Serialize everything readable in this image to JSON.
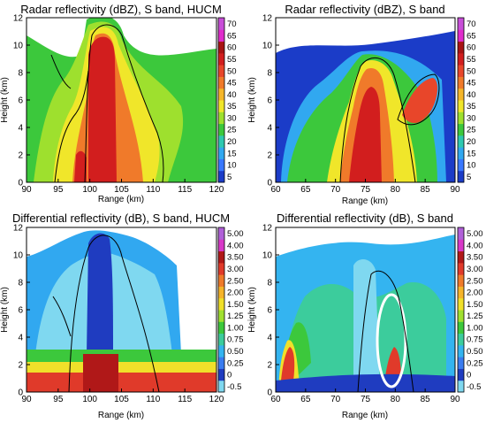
{
  "chart_data": [
    {
      "type": "heatmap",
      "title": "Radar reflectivity (dBZ), S band, HUCM",
      "xlabel": "Range (km)",
      "ylabel": "Height (km)",
      "xlim": [
        90,
        120
      ],
      "ylim": [
        0,
        12
      ],
      "xticks": [
        90,
        95,
        100,
        105,
        110,
        115,
        120
      ],
      "yticks": [
        0,
        2,
        4,
        6,
        8,
        10,
        12
      ],
      "colorbar_ticks": [
        "5",
        "10",
        "15",
        "20",
        "25",
        "30",
        "35",
        "40",
        "45",
        "50",
        "55",
        "60",
        "65",
        "70"
      ],
      "colorbar_colors": [
        "#1b3cc8",
        "#3a78ff",
        "#31a8f0",
        "#2ec9b0",
        "#3cc83c",
        "#9ee02e",
        "#f0e62a",
        "#f5b62a",
        "#f07a2a",
        "#e8462a",
        "#d21e1e",
        "#a81414",
        "#e02ccc",
        "#c84ed8"
      ],
      "features": [
        {
          "name": "core",
          "x_center": 103,
          "x_halfwidth": 2.8,
          "y_bottom": 0,
          "y_top": 11.3,
          "peak_dbz": 60
        },
        {
          "name": "anvil",
          "x_center": 105,
          "x_halfwidth": 11,
          "y_bottom": 7.5,
          "y_top": 11.6,
          "peak_dbz": 35
        }
      ]
    },
    {
      "type": "heatmap",
      "title": "Radar reflectivity (dBZ), S band",
      "xlabel": "Range (km)",
      "ylabel": "Height (km)",
      "xlim": [
        60,
        90
      ],
      "ylim": [
        0,
        12
      ],
      "xticks": [
        60,
        65,
        70,
        75,
        80,
        85,
        90
      ],
      "yticks": [
        0,
        2,
        4,
        6,
        8,
        10,
        12
      ],
      "colorbar_ticks": [
        "5",
        "10",
        "15",
        "20",
        "25",
        "30",
        "35",
        "40",
        "45",
        "50",
        "55",
        "60",
        "65",
        "70"
      ],
      "colorbar_colors": [
        "#1b3cc8",
        "#3a78ff",
        "#31a8f0",
        "#2ec9b0",
        "#3cc83c",
        "#9ee02e",
        "#f0e62a",
        "#f5b62a",
        "#f07a2a",
        "#e8462a",
        "#d21e1e",
        "#a81414",
        "#e02ccc",
        "#c84ed8"
      ],
      "features": [
        {
          "name": "core",
          "x_center": 77,
          "x_halfwidth": 2.5,
          "y_bottom": 0,
          "y_top": 9.5,
          "peak_dbz": 60
        },
        {
          "name": "tilted-tower",
          "x_center": 84,
          "x_halfwidth": 2.5,
          "y_bottom": 4.5,
          "y_top": 8,
          "peak_dbz": 50
        }
      ]
    },
    {
      "type": "heatmap",
      "title": "Differential reflectivity (dB), S band, HUCM",
      "xlabel": "Range (km)",
      "ylabel": "Height (km)",
      "xlim": [
        90,
        120
      ],
      "ylim": [
        0,
        12
      ],
      "xticks": [
        90,
        95,
        100,
        105,
        110,
        115,
        120
      ],
      "yticks": [
        0,
        2,
        4,
        6,
        8,
        10,
        12
      ],
      "colorbar_ticks": [
        "-0.5",
        "0",
        "0.25",
        "0.50",
        "0.75",
        "1.00",
        "1.25",
        "1.50",
        "2.00",
        "2.50",
        "3.00",
        "3.50",
        "4.00",
        "5.00"
      ],
      "colorbar_colors": [
        "#7fd8f0",
        "#1f3cc0",
        "#3a7cf0",
        "#34b4f0",
        "#3ccc9c",
        "#3cc83c",
        "#a0e030",
        "#f0e02a",
        "#f5b42a",
        "#ef7a2a",
        "#e03a2a",
        "#b01818",
        "#d838c8",
        "#b060d8"
      ]
    },
    {
      "type": "heatmap",
      "title": "Differential reflectivity (dB), S band",
      "xlabel": "Range (km)",
      "ylabel": "Height (km)",
      "xlim": [
        60,
        90
      ],
      "ylim": [
        0,
        12
      ],
      "xticks": [
        60,
        65,
        70,
        75,
        80,
        85,
        90
      ],
      "yticks": [
        0,
        2,
        4,
        6,
        8,
        10,
        12
      ],
      "colorbar_ticks": [
        "-0.5",
        "0",
        "0.25",
        "0.50",
        "0.75",
        "1.00",
        "1.25",
        "1.50",
        "2.00",
        "2.50",
        "3.00",
        "3.50",
        "4.00",
        "5.00"
      ],
      "colorbar_colors": [
        "#7fd8f0",
        "#1f3cc0",
        "#3a7cf0",
        "#34b4f0",
        "#3ccc9c",
        "#3cc83c",
        "#a0e030",
        "#f0e02a",
        "#f5b42a",
        "#ef7a2a",
        "#e03a2a",
        "#b01818",
        "#d838c8",
        "#b060d8"
      ]
    }
  ]
}
